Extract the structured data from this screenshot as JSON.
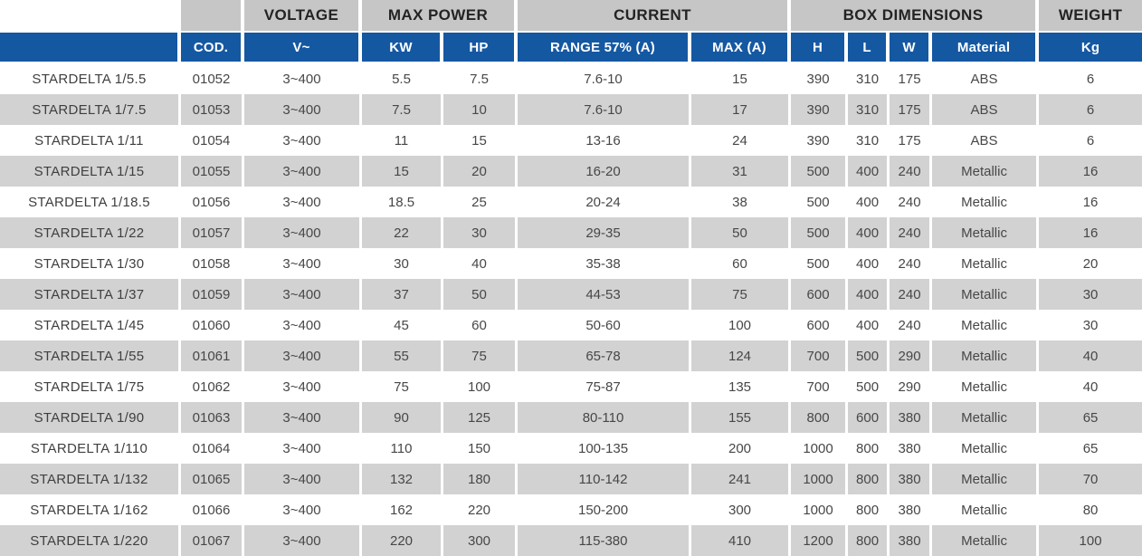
{
  "colors": {
    "group_header_bg": "#c6c6c6",
    "column_header_bg": "#1558a2",
    "column_header_text": "#ffffff",
    "row_alt_bg": "#d2d2d2",
    "row_bg": "#ffffff",
    "cell_text": "#474747"
  },
  "table": {
    "group_headers": [
      {
        "name": "group-header-blank-product",
        "label": "",
        "span": 1,
        "variant": "white"
      },
      {
        "name": "group-header-blank-cod",
        "label": "",
        "span": 1,
        "variant": "gray"
      },
      {
        "name": "group-header-voltage",
        "label": "VOLTAGE",
        "span": 1,
        "variant": "gray"
      },
      {
        "name": "group-header-max-power",
        "label": "MAX POWER",
        "span": 2,
        "variant": "gray"
      },
      {
        "name": "group-header-current",
        "label": "CURRENT",
        "span": 2,
        "variant": "gray"
      },
      {
        "name": "group-header-box-dimensions",
        "label": "BOX DIMENSIONS",
        "span": 4,
        "variant": "gray"
      },
      {
        "name": "group-header-weight",
        "label": "WEIGHT",
        "span": 1,
        "variant": "gray"
      }
    ],
    "columns": [
      {
        "key": "product",
        "label": ""
      },
      {
        "key": "cod",
        "label": "COD."
      },
      {
        "key": "voltage",
        "label": "V~"
      },
      {
        "key": "kw",
        "label": "KW"
      },
      {
        "key": "hp",
        "label": "HP"
      },
      {
        "key": "range",
        "label": "RANGE 57% (A)"
      },
      {
        "key": "max",
        "label": "MAX (A)"
      },
      {
        "key": "h",
        "label": "H"
      },
      {
        "key": "l",
        "label": "L"
      },
      {
        "key": "w",
        "label": "W"
      },
      {
        "key": "material",
        "label": "Material"
      },
      {
        "key": "kg",
        "label": "Kg"
      }
    ],
    "rows": [
      [
        "STARDELTA 1/5.5",
        "01052",
        "3~400",
        "5.5",
        "7.5",
        "7.6-10",
        "15",
        "390",
        "310",
        "175",
        "ABS",
        "6"
      ],
      [
        "STARDELTA 1/7.5",
        "01053",
        "3~400",
        "7.5",
        "10",
        "7.6-10",
        "17",
        "390",
        "310",
        "175",
        "ABS",
        "6"
      ],
      [
        "STARDELTA 1/11",
        "01054",
        "3~400",
        "11",
        "15",
        "13-16",
        "24",
        "390",
        "310",
        "175",
        "ABS",
        "6"
      ],
      [
        "STARDELTA 1/15",
        "01055",
        "3~400",
        "15",
        "20",
        "16-20",
        "31",
        "500",
        "400",
        "240",
        "Metallic",
        "16"
      ],
      [
        "STARDELTA 1/18.5",
        "01056",
        "3~400",
        "18.5",
        "25",
        "20-24",
        "38",
        "500",
        "400",
        "240",
        "Metallic",
        "16"
      ],
      [
        "STARDELTA 1/22",
        "01057",
        "3~400",
        "22",
        "30",
        "29-35",
        "50",
        "500",
        "400",
        "240",
        "Metallic",
        "16"
      ],
      [
        "STARDELTA 1/30",
        "01058",
        "3~400",
        "30",
        "40",
        "35-38",
        "60",
        "500",
        "400",
        "240",
        "Metallic",
        "20"
      ],
      [
        "STARDELTA 1/37",
        "01059",
        "3~400",
        "37",
        "50",
        "44-53",
        "75",
        "600",
        "400",
        "240",
        "Metallic",
        "30"
      ],
      [
        "STARDELTA 1/45",
        "01060",
        "3~400",
        "45",
        "60",
        "50-60",
        "100",
        "600",
        "400",
        "240",
        "Metallic",
        "30"
      ],
      [
        "STARDELTA 1/55",
        "01061",
        "3~400",
        "55",
        "75",
        "65-78",
        "124",
        "700",
        "500",
        "290",
        "Metallic",
        "40"
      ],
      [
        "STARDELTA 1/75",
        "01062",
        "3~400",
        "75",
        "100",
        "75-87",
        "135",
        "700",
        "500",
        "290",
        "Metallic",
        "40"
      ],
      [
        "STARDELTA 1/90",
        "01063",
        "3~400",
        "90",
        "125",
        "80-110",
        "155",
        "800",
        "600",
        "380",
        "Metallic",
        "65"
      ],
      [
        "STARDELTA 1/110",
        "01064",
        "3~400",
        "110",
        "150",
        "100-135",
        "200",
        "1000",
        "800",
        "380",
        "Metallic",
        "65"
      ],
      [
        "STARDELTA 1/132",
        "01065",
        "3~400",
        "132",
        "180",
        "110-142",
        "241",
        "1000",
        "800",
        "380",
        "Metallic",
        "70"
      ],
      [
        "STARDELTA 1/162",
        "01066",
        "3~400",
        "162",
        "220",
        "150-200",
        "300",
        "1000",
        "800",
        "380",
        "Metallic",
        "80"
      ],
      [
        "STARDELTA 1/220",
        "01067",
        "3~400",
        "220",
        "300",
        "115-380",
        "410",
        "1200",
        "800",
        "380",
        "Metallic",
        "100"
      ]
    ]
  }
}
